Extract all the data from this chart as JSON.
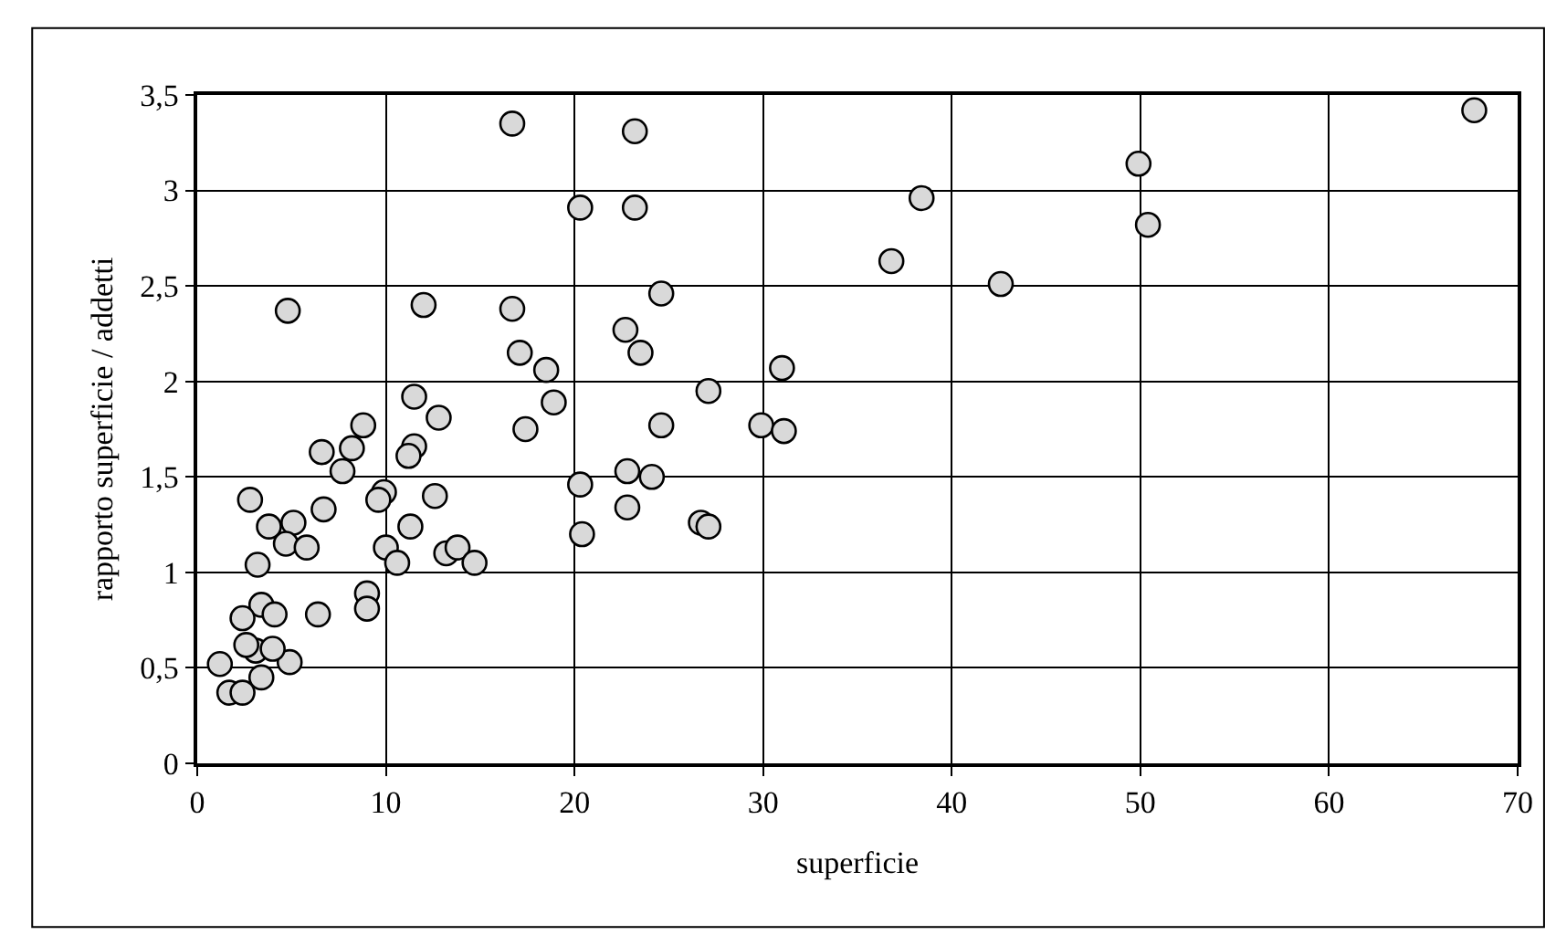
{
  "chart_data": {
    "type": "scatter",
    "xlabel": "superficie",
    "ylabel": "rapporto superficie / addetti",
    "xlim": [
      0,
      70
    ],
    "xticks": [
      0,
      10,
      20,
      30,
      40,
      50,
      60,
      70
    ],
    "ylim": [
      0,
      3.5
    ],
    "yticks": [
      0,
      {
        "value": 0.5,
        "label": "0,5"
      },
      1,
      {
        "value": 1.5,
        "label": "1,5"
      },
      2,
      {
        "value": 2.5,
        "label": "2,5"
      },
      3,
      {
        "value": 3.5,
        "label": "3,5"
      }
    ],
    "grid": true,
    "marker": "circle",
    "series": [
      {
        "color": "#d9d9d9",
        "x": [
          16.7,
          23.2,
          20.3,
          23.2,
          4.8,
          12.0,
          16.7,
          17.1,
          18.5,
          22.7,
          23.5,
          11.5,
          12.8,
          18.9,
          17.4,
          8.8,
          8.2,
          6.6,
          11.5,
          11.2,
          7.7,
          20.3,
          22.8,
          24.1,
          22.8,
          20.4,
          2.8,
          3.8,
          5.1,
          6.7,
          4.7,
          5.8,
          3.2,
          9.9,
          9.6,
          12.6,
          11.3,
          10.0,
          10.6,
          13.2,
          13.8,
          14.7,
          9.0,
          9.0,
          6.4,
          3.4,
          4.1,
          2.4,
          3.1,
          2.6,
          4.9,
          3.4,
          1.2,
          1.7,
          2.4,
          4.0,
          38.4,
          36.8,
          24.6,
          31.0,
          27.1,
          24.6,
          29.9,
          31.1,
          26.7,
          27.1,
          67.7,
          49.9,
          50.4,
          42.6
        ],
        "values": [
          3.35,
          3.31,
          2.91,
          2.91,
          2.37,
          2.4,
          2.38,
          2.15,
          2.06,
          2.27,
          2.15,
          1.92,
          1.81,
          1.89,
          1.75,
          1.77,
          1.65,
          1.63,
          1.66,
          1.61,
          1.53,
          1.46,
          1.53,
          1.5,
          1.34,
          1.2,
          1.38,
          1.24,
          1.26,
          1.33,
          1.15,
          1.13,
          1.04,
          1.42,
          1.38,
          1.4,
          1.24,
          1.13,
          1.05,
          1.1,
          1.13,
          1.05,
          0.89,
          0.81,
          0.78,
          0.83,
          0.78,
          0.76,
          0.59,
          0.62,
          0.53,
          0.45,
          0.52,
          0.37,
          0.37,
          0.6,
          2.96,
          2.63,
          2.46,
          2.07,
          1.95,
          1.77,
          1.77,
          1.74,
          1.26,
          1.24,
          3.42,
          3.14,
          2.82,
          2.51
        ]
      }
    ]
  }
}
